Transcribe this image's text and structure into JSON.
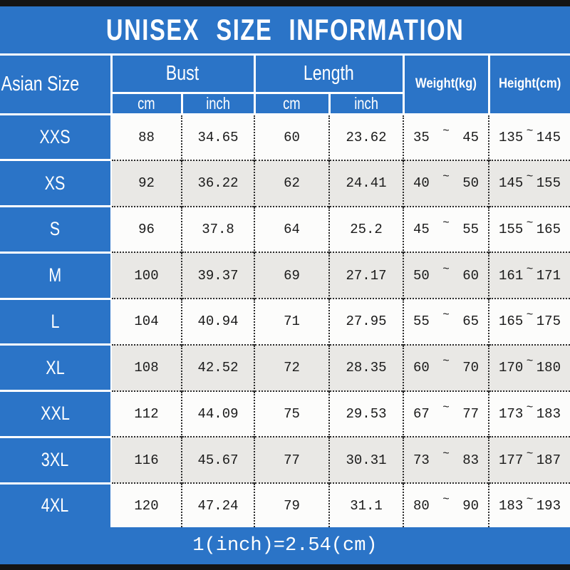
{
  "title": "UNISEX SIZE INFORMATION",
  "footer_note": "1(inch)=2.54(cm)",
  "tilde": "~",
  "colors": {
    "blue": "#2b74c7",
    "row_white": "#fcfcfb",
    "row_gray": "#e9e8e5",
    "frame_black": "#141414",
    "text_dark": "#1a1a1a",
    "text_white": "#ffffff"
  },
  "table": {
    "size_col_header": "Asian Size",
    "groups": [
      {
        "label": "Bust",
        "subs": [
          "cm",
          "inch"
        ]
      },
      {
        "label": "Length",
        "subs": [
          "cm",
          "inch"
        ]
      }
    ],
    "single_headers": [
      "Weight(kg)",
      "Height(cm)"
    ],
    "rows": [
      {
        "size": "XXS",
        "bust_cm": "88",
        "bust_inch": "34.65",
        "length_cm": "60",
        "length_inch": "23.62",
        "weight_min": "35",
        "weight_max": "45",
        "height_min": "135",
        "height_max": "145"
      },
      {
        "size": "XS",
        "bust_cm": "92",
        "bust_inch": "36.22",
        "length_cm": "62",
        "length_inch": "24.41",
        "weight_min": "40",
        "weight_max": "50",
        "height_min": "145",
        "height_max": "155"
      },
      {
        "size": "S",
        "bust_cm": "96",
        "bust_inch": "37.8",
        "length_cm": "64",
        "length_inch": "25.2",
        "weight_min": "45",
        "weight_max": "55",
        "height_min": "155",
        "height_max": "165"
      },
      {
        "size": "M",
        "bust_cm": "100",
        "bust_inch": "39.37",
        "length_cm": "69",
        "length_inch": "27.17",
        "weight_min": "50",
        "weight_max": "60",
        "height_min": "161",
        "height_max": "171"
      },
      {
        "size": "L",
        "bust_cm": "104",
        "bust_inch": "40.94",
        "length_cm": "71",
        "length_inch": "27.95",
        "weight_min": "55",
        "weight_max": "65",
        "height_min": "165",
        "height_max": "175"
      },
      {
        "size": "XL",
        "bust_cm": "108",
        "bust_inch": "42.52",
        "length_cm": "72",
        "length_inch": "28.35",
        "weight_min": "60",
        "weight_max": "70",
        "height_min": "170",
        "height_max": "180"
      },
      {
        "size": "XXL",
        "bust_cm": "112",
        "bust_inch": "44.09",
        "length_cm": "75",
        "length_inch": "29.53",
        "weight_min": "67",
        "weight_max": "77",
        "height_min": "173",
        "height_max": "183"
      },
      {
        "size": "3XL",
        "bust_cm": "116",
        "bust_inch": "45.67",
        "length_cm": "77",
        "length_inch": "30.31",
        "weight_min": "73",
        "weight_max": "83",
        "height_min": "177",
        "height_max": "187"
      },
      {
        "size": "4XL",
        "bust_cm": "120",
        "bust_inch": "47.24",
        "length_cm": "79",
        "length_inch": "31.1",
        "weight_min": "80",
        "weight_max": "90",
        "height_min": "183",
        "height_max": "193"
      }
    ]
  },
  "chart_data": {
    "type": "table",
    "title": "UNISEX SIZE INFORMATION",
    "columns": [
      "Asian Size",
      "Bust cm",
      "Bust inch",
      "Length cm",
      "Length inch",
      "Weight(kg)",
      "Height(cm)"
    ],
    "rows": [
      [
        "XXS",
        88,
        34.65,
        60,
        23.62,
        "35~45",
        "135~145"
      ],
      [
        "XS",
        92,
        36.22,
        62,
        24.41,
        "40~50",
        "145~155"
      ],
      [
        "S",
        96,
        37.8,
        64,
        25.2,
        "45~55",
        "155~165"
      ],
      [
        "M",
        100,
        39.37,
        69,
        27.17,
        "50~60",
        "161~171"
      ],
      [
        "L",
        104,
        40.94,
        71,
        27.95,
        "55~65",
        "165~175"
      ],
      [
        "XL",
        108,
        42.52,
        72,
        28.35,
        "60~70",
        "170~180"
      ],
      [
        "XXL",
        112,
        44.09,
        75,
        29.53,
        "67~77",
        "173~183"
      ],
      [
        "3XL",
        116,
        45.67,
        77,
        30.31,
        "73~83",
        "177~187"
      ],
      [
        "4XL",
        120,
        47.24,
        79,
        31.1,
        "80~90",
        "183~193"
      ]
    ],
    "footnote": "1(inch)=2.54(cm)"
  }
}
